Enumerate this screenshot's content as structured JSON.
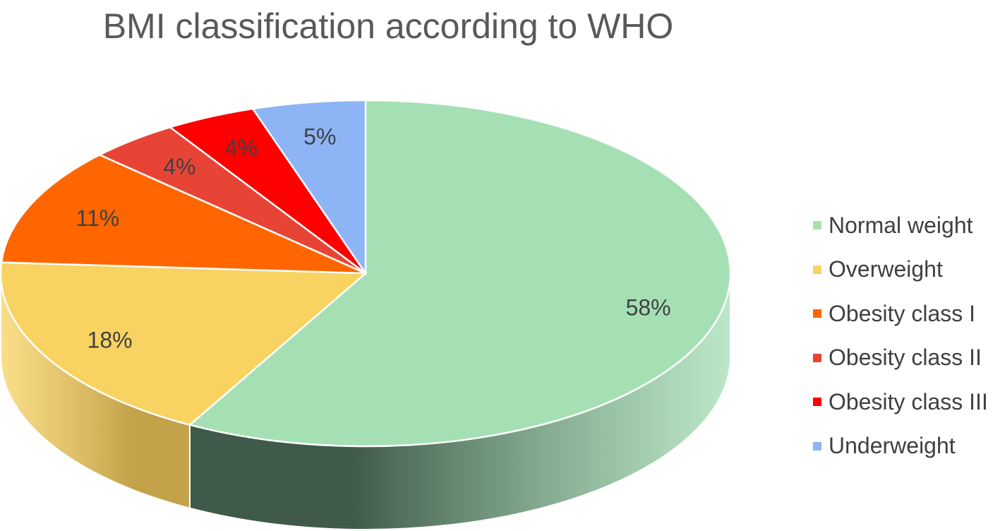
{
  "chart_data": {
    "type": "pie",
    "style": "3d",
    "title": "BMI classification according to WHO",
    "legend_position": "right",
    "slices": [
      {
        "name": "Normal weight",
        "value": 58,
        "label": "58%",
        "color": "#a5e0b5",
        "side_color": "#3f5a48"
      },
      {
        "name": "Overweight",
        "value": 18,
        "label": "18%",
        "color": "#f8d362",
        "side_color": "#c4a24a"
      },
      {
        "name": "Obesity class I",
        "value": 11,
        "label": "11%",
        "color": "#ff6600",
        "side_color": "#b34700"
      },
      {
        "name": "Obesity class II",
        "value": 4,
        "label": "4%",
        "color": "#e84436",
        "side_color": "#a33026"
      },
      {
        "name": "Obesity class III",
        "value": 4,
        "label": "4%",
        "color": "#ff0000",
        "side_color": "#b30000"
      },
      {
        "name": "Underweight",
        "value": 5,
        "label": "5%",
        "color": "#8db4f5",
        "side_color": "#637eab"
      }
    ]
  }
}
